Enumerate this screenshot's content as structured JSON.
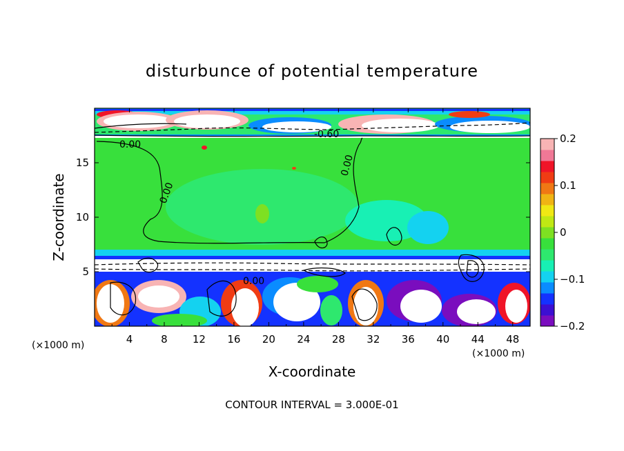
{
  "chart_data": {
    "type": "heatmap",
    "title": "disturbunce of potential temperature",
    "xlabel": "X-coordinate",
    "ylabel": "Z-coordinate",
    "x_unit": "(×1000 m)",
    "z_unit": "(×1000 m)",
    "x_range": [
      0,
      50
    ],
    "z_range": [
      0,
      20
    ],
    "x_ticks": [
      4,
      8,
      12,
      16,
      20,
      24,
      28,
      32,
      36,
      40,
      44,
      48
    ],
    "z_ticks": [
      5,
      10,
      15
    ],
    "colorbar": {
      "range": [
        -0.2,
        0.2
      ],
      "ticks": [
        "0.2",
        "0.1",
        "0",
        "−0.1",
        "−0.2"
      ],
      "tick_values": [
        0.2,
        0.1,
        0,
        -0.1,
        -0.2
      ],
      "colors": [
        "#7a0dbe",
        "#3c0fd2",
        "#1432ff",
        "#0a8cff",
        "#14d2f0",
        "#18f0b4",
        "#2ee86e",
        "#38e03c",
        "#7ee022",
        "#c0e814",
        "#f0e814",
        "#f0b414",
        "#f07814",
        "#f03c14",
        "#f01428",
        "#f07896",
        "#f8b4b4"
      ]
    },
    "contour_interval_text": "CONTOUR INTERVAL = 3.000E-01",
    "contour_labels": [
      "0.00",
      "-0.60",
      "0.00",
      "0.00",
      "0.00"
    ],
    "regions": [
      {
        "z_from": 17.3,
        "z_to": 20,
        "value": "mixed, about -0.2 to +0.2"
      },
      {
        "z_from": 6.2,
        "z_to": 17.3,
        "value": "near 0"
      },
      {
        "z_from": 5.0,
        "z_to": 6.2,
        "value": "negative layer, about -0.1 to -0.2"
      },
      {
        "z_from": 0,
        "z_to": 5.0,
        "value": "turbulent, about -0.2 to +0.2"
      }
    ]
  }
}
